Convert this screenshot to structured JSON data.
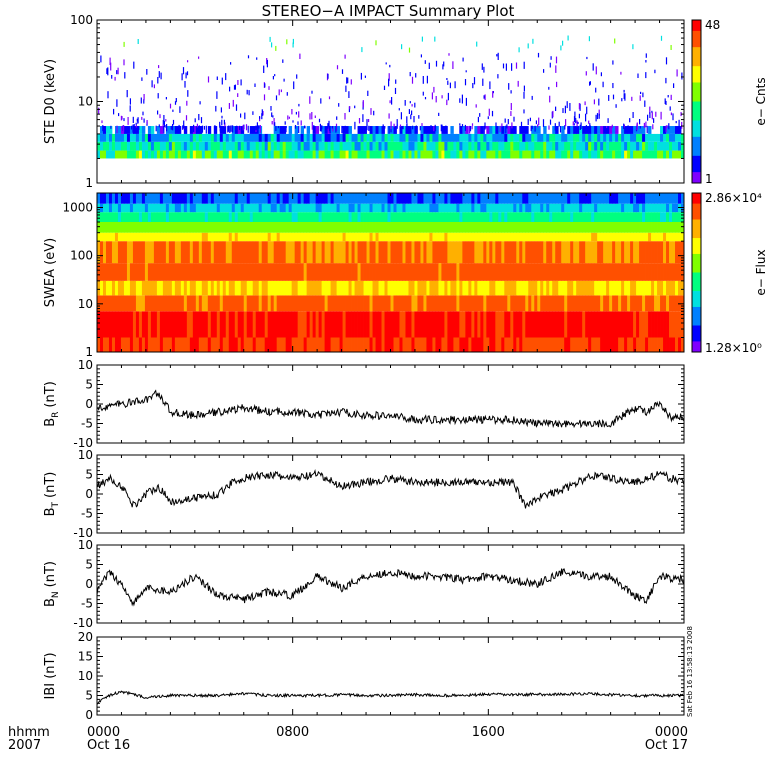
{
  "title": "STEREO−A IMPACT Summary Plot",
  "timestamp_note": "Sat Feb 16 13:58:13 2008",
  "time_axis": {
    "row_label_1": "hhmm",
    "row_label_2": "2007",
    "ticks": [
      {
        "hour": 0,
        "label": "0000",
        "date": "Oct 16"
      },
      {
        "hour": 8,
        "label": "0800",
        "date": ""
      },
      {
        "hour": 16,
        "label": "1600",
        "date": ""
      },
      {
        "hour": 24,
        "label": "0000",
        "date": "Oct 17"
      }
    ],
    "range_hours": [
      0,
      24
    ]
  },
  "colors": {
    "colormap": [
      "#7f00ff",
      "#0000ff",
      "#0080ff",
      "#00e0e0",
      "#00ff80",
      "#80ff00",
      "#ffff00",
      "#ffb000",
      "#ff5000",
      "#ff0000"
    ],
    "line": "#000000"
  },
  "chart_data": [
    {
      "type": "heatmap",
      "name": "ste",
      "ylabel": "STE D0 (keV)",
      "yscale": "log",
      "ylim": [
        1,
        100
      ],
      "ytick_labels": [
        "1",
        "10",
        "100"
      ],
      "colorbar": {
        "label": "e− Cnts",
        "min_label": "1",
        "max_label": "48",
        "range": [
          1,
          48
        ]
      },
      "bands": [
        {
          "ymin": 2.0,
          "ymax": 2.5,
          "level": 0.48
        },
        {
          "ymin": 2.5,
          "ymax": 3.2,
          "level": 0.38
        },
        {
          "ymin": 3.2,
          "ymax": 4.0,
          "level": 0.28
        },
        {
          "ymin": 4.0,
          "ymax": 5.0,
          "level": 0.16
        }
      ]
    },
    {
      "type": "heatmap",
      "name": "swea",
      "ylabel": "SWEA (eV)",
      "yscale": "log",
      "ylim": [
        1,
        2000
      ],
      "ytick_labels": [
        "1",
        "10",
        "100",
        "1000"
      ],
      "colorbar": {
        "label": "e− Flux",
        "min_label": "1.28×10⁰",
        "max_label": "2.86×10⁴",
        "range": [
          1.28,
          28600
        ]
      },
      "bands": [
        {
          "ymin": 1,
          "ymax": 2,
          "level": 0.93
        },
        {
          "ymin": 2,
          "ymax": 7,
          "level": 0.97
        },
        {
          "ymin": 7,
          "ymax": 15,
          "level": 0.86
        },
        {
          "ymin": 15,
          "ymax": 30,
          "level": 0.72
        },
        {
          "ymin": 30,
          "ymax": 70,
          "level": 0.88
        },
        {
          "ymin": 70,
          "ymax": 200,
          "level": 0.84
        },
        {
          "ymin": 200,
          "ymax": 300,
          "level": 0.68
        },
        {
          "ymin": 300,
          "ymax": 500,
          "level": 0.55
        },
        {
          "ymin": 500,
          "ymax": 800,
          "level": 0.42
        },
        {
          "ymin": 800,
          "ymax": 1200,
          "level": 0.3
        },
        {
          "ymin": 1200,
          "ymax": 2000,
          "level": 0.18
        }
      ]
    },
    {
      "type": "line",
      "name": "br",
      "ylabel": "B",
      "ylabel_sub": "R",
      "ylabel_unit": "(nT)",
      "ylim": [
        -10,
        10
      ],
      "yticks": [
        -10,
        -5,
        0,
        5,
        10
      ],
      "x_hours": [
        0,
        1,
        2,
        2.5,
        3,
        4,
        5,
        6,
        7,
        8,
        9,
        10,
        11,
        12,
        13,
        14,
        15,
        16,
        17,
        18,
        19,
        20,
        21,
        22,
        22.5,
        23,
        23.5,
        24
      ],
      "values": [
        -1,
        0,
        1,
        3,
        -2,
        -3,
        -2,
        -1,
        -2,
        -2,
        -3,
        -2,
        -3,
        -3,
        -4,
        -4,
        -4,
        -4,
        -4,
        -5,
        -5,
        -5,
        -5,
        -1,
        -2,
        0,
        -4,
        -3
      ]
    },
    {
      "type": "line",
      "name": "bt",
      "ylabel": "B",
      "ylabel_sub": "T",
      "ylabel_unit": "(nT)",
      "ylim": [
        -10,
        10
      ],
      "yticks": [
        -10,
        -5,
        0,
        5,
        10
      ],
      "x_hours": [
        0,
        0.5,
        1,
        1.5,
        2,
        2.5,
        3,
        4,
        5,
        5.5,
        6,
        7,
        8,
        9,
        10,
        11,
        12,
        13,
        14,
        15,
        16,
        17,
        17.5,
        18,
        19,
        20,
        20.5,
        21,
        22,
        23,
        24
      ],
      "values": [
        2,
        4,
        2,
        -3,
        0,
        2,
        -2,
        -1,
        0,
        3,
        4,
        5,
        4,
        5,
        2,
        3,
        4,
        3,
        3,
        3,
        3,
        3,
        -3,
        -1,
        1,
        4,
        5,
        4,
        3,
        5,
        3
      ]
    },
    {
      "type": "line",
      "name": "bn",
      "ylabel": "B",
      "ylabel_sub": "N",
      "ylabel_unit": "(nT)",
      "ylim": [
        -10,
        10
      ],
      "yticks": [
        -10,
        -5,
        0,
        5,
        10
      ],
      "x_hours": [
        0,
        0.5,
        1,
        1.5,
        2,
        3,
        4,
        5,
        6,
        7,
        8,
        9,
        10,
        11,
        12,
        13,
        14,
        15,
        16,
        17,
        18,
        19,
        20,
        21,
        22,
        22.5,
        23,
        24
      ],
      "values": [
        -2,
        3,
        0,
        -5,
        -1,
        -2,
        2,
        -3,
        -4,
        -2,
        -3,
        2,
        -1,
        2,
        3,
        2,
        2,
        1,
        2,
        1,
        0,
        3,
        2,
        2,
        -3,
        -4,
        2,
        1
      ]
    },
    {
      "type": "line",
      "name": "bmag",
      "ylabel": "IBI (nT)",
      "ylim": [
        0,
        20
      ],
      "yticks": [
        0,
        5,
        10,
        15,
        20
      ],
      "x_hours": [
        0,
        0.5,
        1,
        2,
        3,
        4,
        5,
        6,
        7,
        8,
        9,
        10,
        11,
        12,
        13,
        14,
        15,
        16,
        17,
        18,
        19,
        20,
        21,
        22,
        23,
        24
      ],
      "values": [
        3,
        5,
        6,
        4.5,
        5,
        5,
        5,
        5.5,
        5,
        5,
        5,
        5.2,
        5,
        5,
        5.2,
        5,
        5,
        5.3,
        5.2,
        5.3,
        5.3,
        5.5,
        5.2,
        5,
        5,
        5
      ]
    }
  ]
}
